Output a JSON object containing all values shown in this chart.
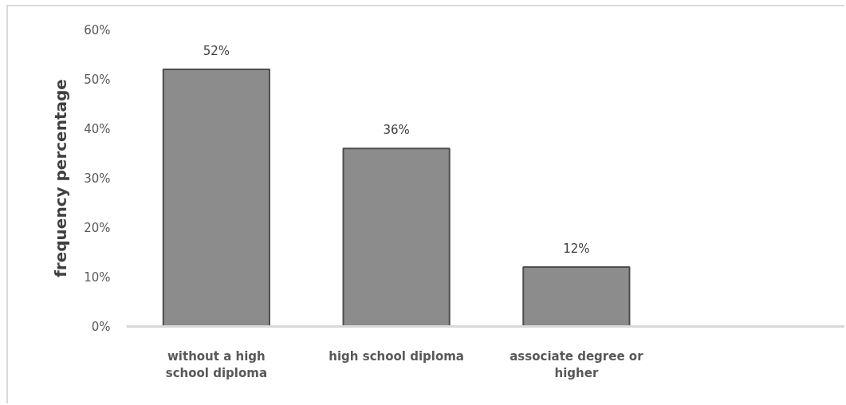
{
  "chart_data": {
    "type": "bar",
    "ylabel": "frequency percentage",
    "categories": [
      "without a high school diploma",
      "high school diploma",
      "associate degree or higher",
      null
    ],
    "values": [
      52,
      36,
      12,
      null
    ],
    "color": "#8c8c8c",
    "ylim": [
      0,
      60
    ],
    "yticks": [
      {
        "value": 0,
        "label": "0%"
      },
      {
        "value": 10,
        "label": "10%"
      },
      {
        "value": 20,
        "label": "20%"
      },
      {
        "value": 30,
        "label": "30%"
      },
      {
        "value": 40,
        "label": "40%"
      },
      {
        "value": 50,
        "label": "50%"
      },
      {
        "value": 60,
        "label": "60%"
      }
    ],
    "value_labels": [
      "52%",
      "36%",
      "12%",
      null
    ],
    "grid": false
  }
}
